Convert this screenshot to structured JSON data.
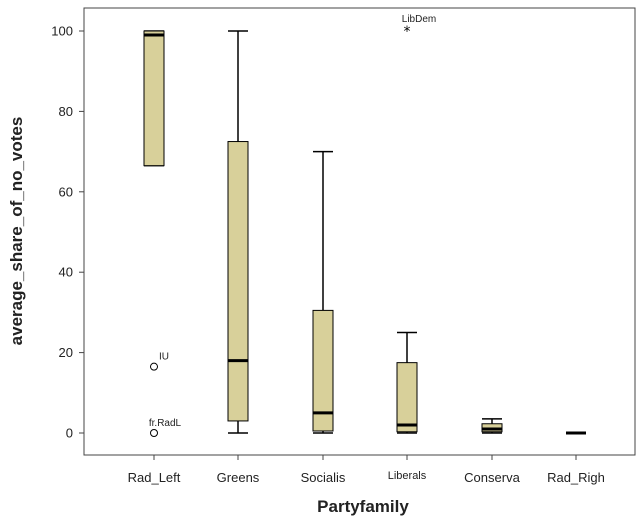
{
  "chart_data": {
    "type": "boxplot",
    "xlabel": "Partyfamily",
    "ylabel": "average_share_of_no_votes",
    "ylim": [
      -5,
      106
    ],
    "yticks": [
      0,
      20,
      40,
      60,
      80,
      100
    ],
    "grid": false,
    "box_color": "#d8d09a",
    "categories": [
      "Rad_Left",
      "Greens",
      "Socialis",
      "Liberals",
      "Conserva",
      "Rad_Righ"
    ],
    "boxes": [
      {
        "category": "Rad_Left",
        "whisker_low": 66.5,
        "q1": 66.5,
        "median": 99,
        "q3": 100,
        "whisker_high": 100
      },
      {
        "category": "Greens",
        "whisker_low": 0,
        "q1": 3,
        "median": 18,
        "q3": 72.5,
        "whisker_high": 100
      },
      {
        "category": "Socialis",
        "whisker_low": 0,
        "q1": 0.5,
        "median": 5,
        "q3": 30.5,
        "whisker_high": 70
      },
      {
        "category": "Liberals",
        "whisker_low": 0,
        "q1": 0.3,
        "median": 2,
        "q3": 17.5,
        "whisker_high": 25
      },
      {
        "category": "Conserva",
        "whisker_low": 0,
        "q1": 0.3,
        "median": 1,
        "q3": 2.3,
        "whisker_high": 3.5
      },
      {
        "category": "Rad_Righ",
        "whisker_low": 0,
        "q1": 0,
        "median": 0,
        "q3": 0,
        "whisker_high": 0
      }
    ],
    "outliers": [
      {
        "category": "Rad_Left",
        "value": 16.5,
        "label": "IU",
        "marker": "circle"
      },
      {
        "category": "Rad_Left",
        "value": 0,
        "label": "fr.RadL",
        "marker": "circle"
      },
      {
        "category": "Liberals",
        "value": 100,
        "label": "LibDem",
        "marker": "star"
      }
    ]
  }
}
